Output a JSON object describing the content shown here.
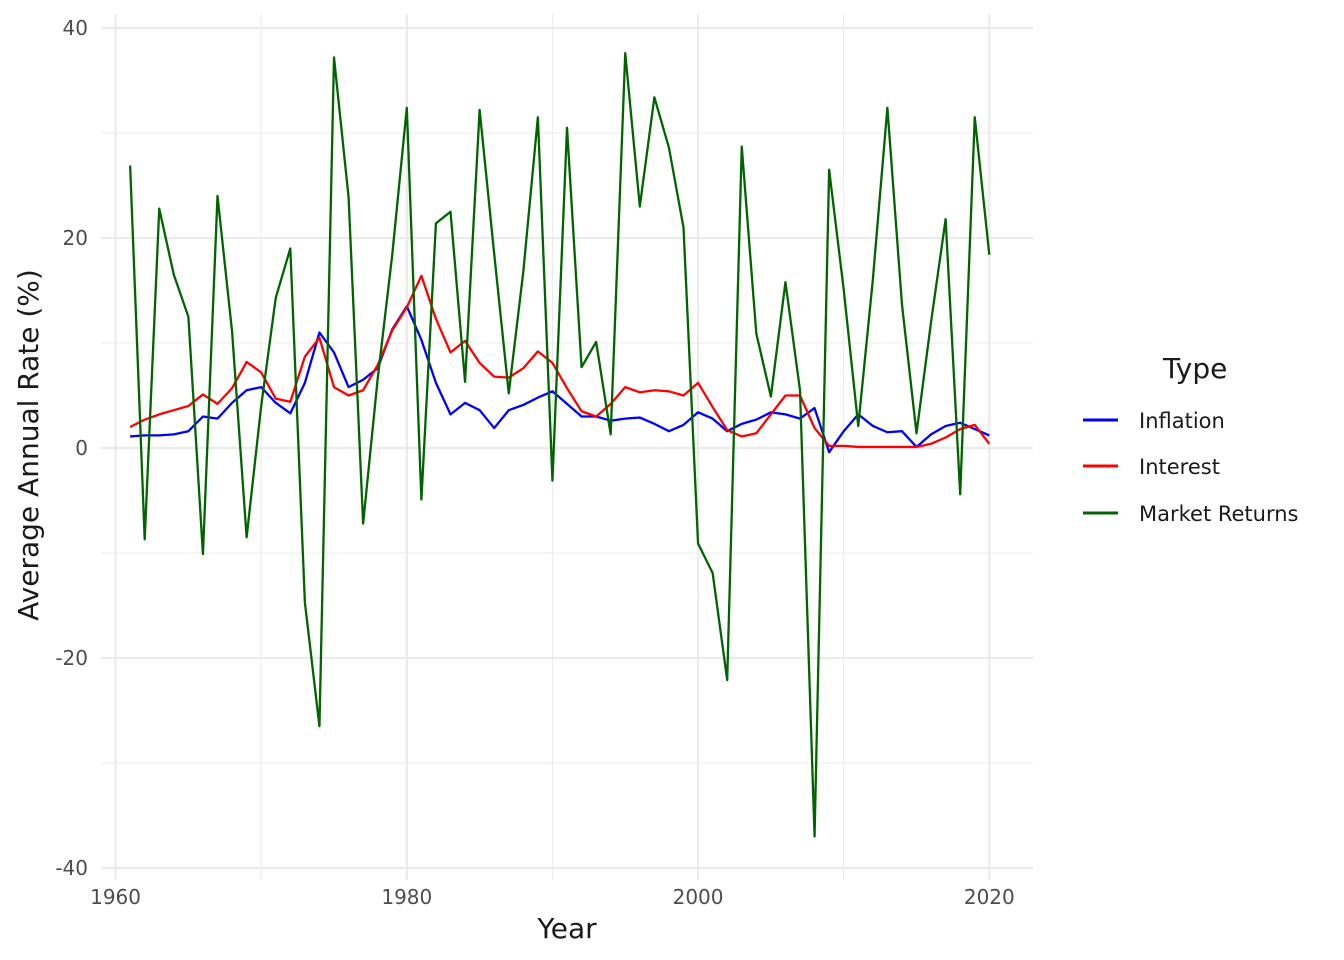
{
  "chart_data": {
    "type": "line",
    "title": "",
    "xlabel": "Year",
    "ylabel": "Average Annual Rate (%)",
    "xlim": [
      1959,
      2023
    ],
    "ylim": [
      -40,
      40
    ],
    "x_ticks": [
      1960,
      1980,
      2000,
      2020
    ],
    "x_tick_labels": [
      "1960",
      "1980",
      "2000",
      "2020"
    ],
    "y_ticks": [
      -40,
      -20,
      0,
      20,
      40
    ],
    "y_tick_labels": [
      "-40",
      "-20",
      "0",
      "20",
      "40"
    ],
    "grid": true,
    "legend": {
      "title": "Type",
      "placement": "right"
    },
    "x": [
      1961,
      1962,
      1963,
      1964,
      1965,
      1966,
      1967,
      1968,
      1969,
      1970,
      1971,
      1972,
      1973,
      1974,
      1975,
      1976,
      1977,
      1978,
      1979,
      1980,
      1981,
      1982,
      1983,
      1984,
      1985,
      1986,
      1987,
      1988,
      1989,
      1990,
      1991,
      1992,
      1993,
      1994,
      1995,
      1996,
      1997,
      1998,
      1999,
      2000,
      2001,
      2002,
      2003,
      2004,
      2005,
      2006,
      2007,
      2008,
      2009,
      2010,
      2011,
      2012,
      2013,
      2014,
      2015,
      2016,
      2017,
      2018,
      2019,
      2020
    ],
    "series": [
      {
        "name": "Inflation",
        "color": "#0000ff",
        "values": [
          1.1,
          1.2,
          1.2,
          1.3,
          1.6,
          3.0,
          2.8,
          4.3,
          5.5,
          5.8,
          4.3,
          3.3,
          6.2,
          11.0,
          9.1,
          5.8,
          6.5,
          7.6,
          11.3,
          13.5,
          10.3,
          6.2,
          3.2,
          4.3,
          3.6,
          1.9,
          3.6,
          4.1,
          4.8,
          5.4,
          4.2,
          3.0,
          3.0,
          2.6,
          2.8,
          2.9,
          2.3,
          1.6,
          2.2,
          3.4,
          2.8,
          1.6,
          2.3,
          2.7,
          3.4,
          3.2,
          2.8,
          3.8,
          -0.4,
          1.6,
          3.2,
          2.1,
          1.5,
          1.6,
          0.1,
          1.3,
          2.1,
          2.4,
          1.8,
          1.2
        ]
      },
      {
        "name": "Interest",
        "color": "#ff0000",
        "values": [
          2.0,
          2.7,
          3.2,
          3.6,
          4.0,
          5.1,
          4.2,
          5.7,
          8.2,
          7.2,
          4.7,
          4.4,
          8.7,
          10.5,
          5.8,
          5.0,
          5.5,
          7.9,
          11.2,
          13.4,
          16.4,
          12.3,
          9.1,
          10.2,
          8.1,
          6.8,
          6.7,
          7.6,
          9.2,
          8.1,
          5.7,
          3.5,
          3.0,
          4.2,
          5.8,
          5.3,
          5.5,
          5.4,
          5.0,
          6.2,
          3.9,
          1.7,
          1.1,
          1.4,
          3.2,
          5.0,
          5.0,
          1.9,
          0.2,
          0.2,
          0.1,
          0.1,
          0.1,
          0.1,
          0.1,
          0.4,
          1.0,
          1.8,
          2.2,
          0.4
        ]
      },
      {
        "name": "Market Returns",
        "color": "#006400",
        "values": [
          26.9,
          -8.7,
          22.8,
          16.5,
          12.5,
          -10.1,
          24.0,
          11.1,
          -8.5,
          4.0,
          14.3,
          19.0,
          -14.7,
          -26.5,
          37.2,
          23.9,
          -7.2,
          6.6,
          18.4,
          32.4,
          -4.9,
          21.4,
          22.5,
          6.3,
          32.2,
          18.5,
          5.2,
          16.8,
          31.5,
          -3.1,
          30.5,
          7.7,
          10.1,
          1.3,
          37.6,
          23.0,
          33.4,
          28.6,
          21.0,
          -9.1,
          -11.9,
          -22.1,
          28.7,
          10.9,
          4.9,
          15.8,
          5.5,
          -37.0,
          26.5,
          15.1,
          2.1,
          16.0,
          32.4,
          13.7,
          1.4,
          12.0,
          21.8,
          -4.4,
          31.5,
          18.4
        ]
      }
    ]
  }
}
